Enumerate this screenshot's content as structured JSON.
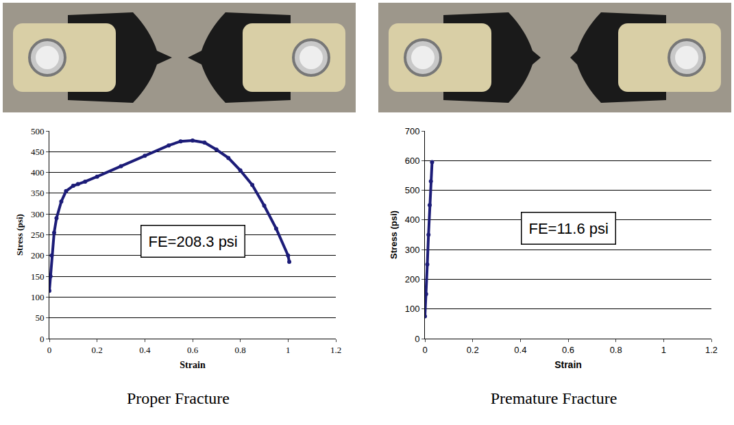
{
  "chart_data": [
    {
      "type": "line",
      "caption": "Proper Fracture",
      "x_label": "Strain",
      "y_label": "Stress (psi)",
      "annotation": "FE=208.3 psi",
      "color": "#1c1c78",
      "marker": "circle",
      "line_style": "solid",
      "grid": true,
      "x": [
        0,
        0.005,
        0.01,
        0.02,
        0.03,
        0.05,
        0.07,
        0.1,
        0.12,
        0.15,
        0.2,
        0.3,
        0.4,
        0.5,
        0.55,
        0.6,
        0.65,
        0.7,
        0.75,
        0.8,
        0.85,
        0.9,
        0.95,
        1.0,
        1.005
      ],
      "values": [
        115,
        150,
        200,
        255,
        290,
        330,
        355,
        368,
        372,
        378,
        390,
        415,
        440,
        465,
        475,
        477,
        472,
        455,
        435,
        405,
        370,
        320,
        265,
        200,
        185
      ],
      "xlim": [
        0,
        1.2
      ],
      "xticks": [
        0,
        0.2,
        0.4,
        0.6,
        0.8,
        1,
        1.2
      ],
      "ylim": [
        0,
        500
      ],
      "yticks": [
        0,
        50,
        100,
        150,
        200,
        250,
        300,
        350,
        400,
        450,
        500
      ]
    },
    {
      "type": "line",
      "caption": "Premature Fracture",
      "x_label": "Strain",
      "y_label": "Stress (psi)",
      "annotation": "FE=11.6 psi",
      "color": "#1c1c78",
      "marker": "circle",
      "line_style": "solid",
      "grid": true,
      "x": [
        0,
        0.005,
        0.01,
        0.015,
        0.02,
        0.025,
        0.03
      ],
      "values": [
        75,
        150,
        250,
        350,
        450,
        530,
        595
      ],
      "xlim": [
        0,
        1.2
      ],
      "xticks": [
        0,
        0.2,
        0.4,
        0.6,
        0.8,
        1,
        1.2
      ],
      "ylim": [
        0,
        700
      ],
      "yticks": [
        0,
        100,
        200,
        300,
        400,
        500,
        600,
        700
      ]
    }
  ]
}
